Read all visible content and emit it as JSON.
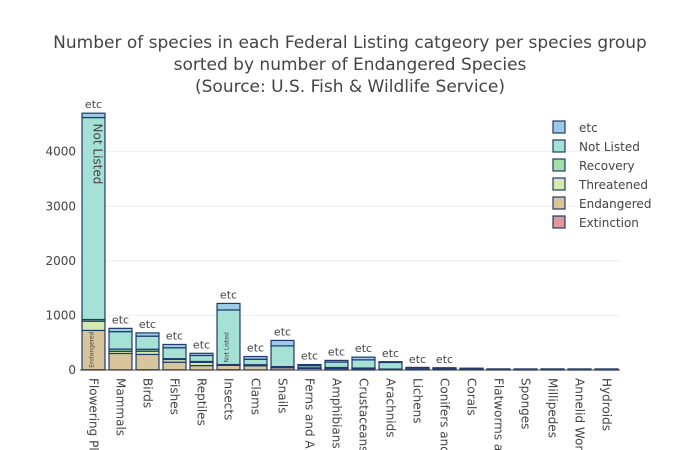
{
  "chart_data": {
    "type": "bar",
    "stacked": true,
    "title_lines": [
      "Number of species in each Federal Listing catgeory per species group",
      "sorted by number of Endangered Species",
      "(Source: U.S. Fish & Wildlife Service)"
    ],
    "xlabel": "",
    "ylabel": "",
    "ylim": [
      0,
      4800
    ],
    "yticks": [
      0,
      1000,
      2000,
      3000,
      4000
    ],
    "grid": true,
    "legend_position": "top-right",
    "categories": [
      "Flowering Pl",
      "Mammals",
      "Birds",
      "Fishes",
      "Reptiles",
      "Insects",
      "Clams",
      "Snails",
      "Ferns and A",
      "Amphibians",
      "Crustaceans",
      "Arachnids",
      "Lichens",
      "Conifers anc",
      "Corals",
      "Flatworms a",
      "Sponges",
      "Millipedes",
      "Annelid Wor",
      "Hydroids"
    ],
    "series": [
      {
        "name": "Extinction",
        "color": "#e0989b",
        "values": [
          5,
          3,
          5,
          3,
          1,
          5,
          2,
          2,
          0,
          1,
          1,
          0,
          0,
          0,
          0,
          0,
          0,
          0,
          0,
          0
        ]
      },
      {
        "name": "Endangered",
        "color": "#d9c59c",
        "values": [
          720,
          300,
          280,
          140,
          80,
          80,
          75,
          40,
          30,
          25,
          20,
          15,
          5,
          4,
          2,
          1,
          1,
          1,
          1,
          1
        ]
      },
      {
        "name": "Threatened",
        "color": "#d3ebb0",
        "values": [
          170,
          40,
          60,
          50,
          60,
          10,
          15,
          15,
          5,
          10,
          10,
          0,
          2,
          2,
          5,
          0,
          0,
          0,
          0,
          0
        ]
      },
      {
        "name": "Recovery",
        "color": "#a3e0a8",
        "values": [
          30,
          40,
          35,
          15,
          15,
          5,
          5,
          5,
          5,
          10,
          5,
          3,
          1,
          1,
          2,
          0,
          0,
          0,
          0,
          0
        ]
      },
      {
        "name": "Not Listed",
        "color": "#a5e1d4",
        "values": [
          3700,
          320,
          240,
          200,
          110,
          1000,
          100,
          380,
          40,
          100,
          150,
          120,
          25,
          20,
          10,
          5,
          4,
          5,
          4,
          4
        ]
      },
      {
        "name": "etc",
        "color": "#9ec9e8",
        "values": [
          80,
          60,
          60,
          60,
          40,
          120,
          50,
          100,
          20,
          30,
          50,
          10,
          7,
          8,
          5,
          2,
          2,
          2,
          2,
          2
        ]
      }
    ],
    "bar_top_labels": [
      "etc",
      "etc",
      "etc",
      "etc",
      "etc",
      "etc",
      "etc",
      "etc",
      "etc",
      "etc",
      "etc",
      "etc",
      "etc",
      "etc",
      "",
      "",
      "",
      "",
      "",
      ""
    ],
    "inside_labels": [
      {
        "category": "Flowering Pl",
        "series": "Not Listed",
        "text": "Not Listed"
      },
      {
        "category": "Insects",
        "series": "Not Listed",
        "text": "Not Listed"
      },
      {
        "category": "Flowering Pl",
        "series": "Endangered",
        "text": "Endangered"
      }
    ]
  }
}
